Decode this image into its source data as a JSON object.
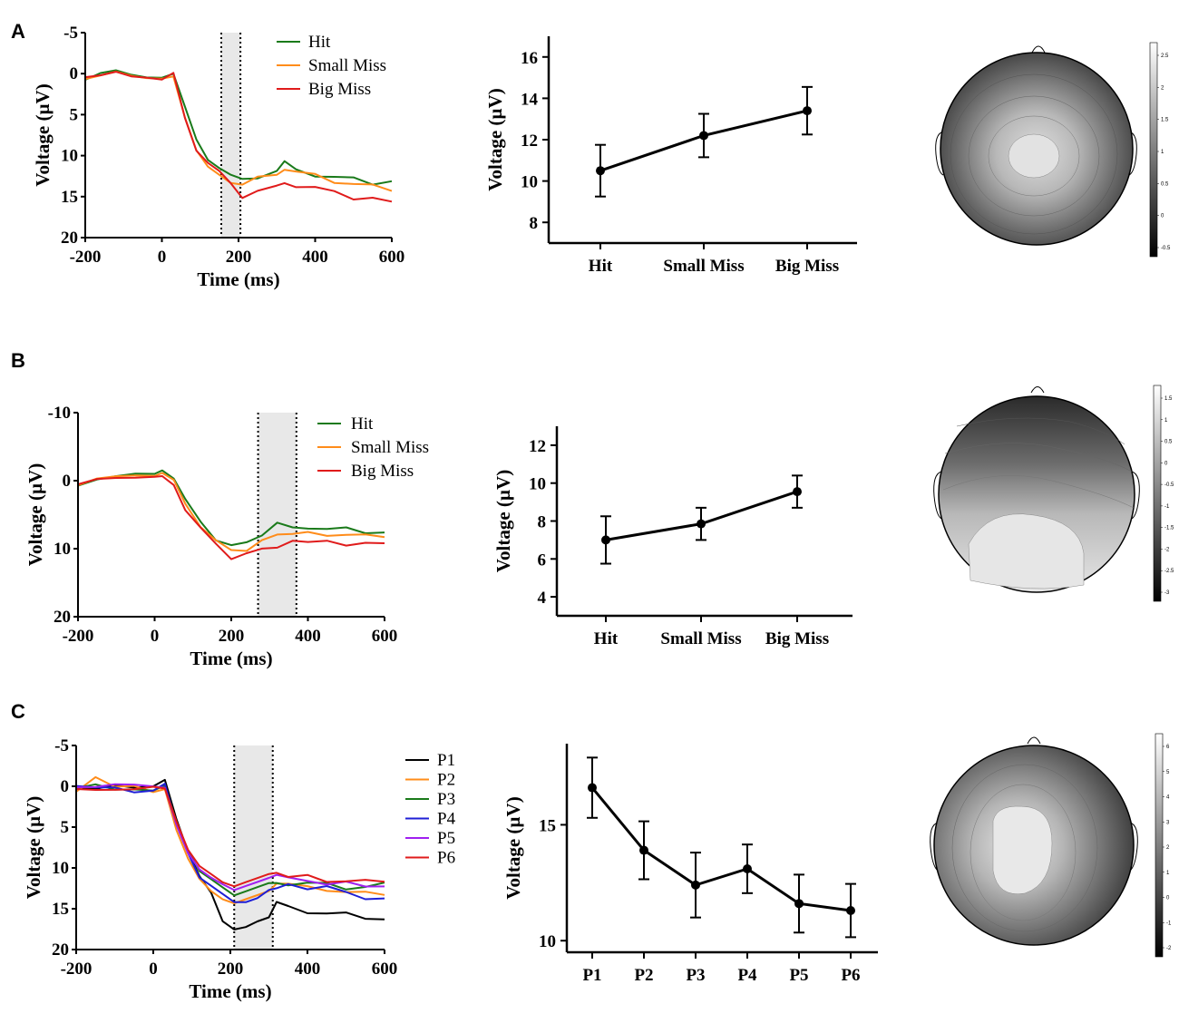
{
  "panels": [
    "A",
    "B",
    "C"
  ],
  "colors": {
    "hit": "#1a7a1a",
    "small_miss": "#ff8c1a",
    "big_miss": "#e01b1b",
    "p1": "#000000",
    "p2": "#ff8c1a",
    "p3": "#1a7a1a",
    "p4": "#1f1fd6",
    "p5": "#a020f0",
    "p6": "#e01b1b",
    "shade": "#e8e8e8"
  },
  "chart_data": [
    {
      "id": "A-erp",
      "type": "line",
      "title": "",
      "xlabel": "Time (ms)",
      "ylabel": "Voltage (µV)",
      "xlim": [
        -200,
        600
      ],
      "ylim": [
        -5,
        20
      ],
      "y_inverted": true,
      "xticks": [
        "-200",
        "0",
        "200",
        "400",
        "600"
      ],
      "yticks": [
        "-5",
        "0",
        "5",
        "10",
        "15",
        "20"
      ],
      "shaded_window_ms": [
        155,
        205
      ],
      "legend": [
        "Hit",
        "Small Miss",
        "Big Miss"
      ],
      "series": [
        {
          "name": "Hit",
          "color": "hit",
          "x": [
            -200,
            -160,
            -120,
            -80,
            -40,
            0,
            30,
            60,
            90,
            120,
            150,
            180,
            210,
            250,
            300,
            320,
            350,
            400,
            450,
            500,
            550,
            600
          ],
          "y": [
            0.5,
            -0.3,
            -0.6,
            0,
            0.4,
            0.5,
            0,
            4,
            8,
            10.5,
            11.5,
            12.3,
            12.8,
            12.5,
            11.8,
            11,
            12,
            12.3,
            12.5,
            13,
            13.3,
            13
          ]
        },
        {
          "name": "Small Miss",
          "color": "small_miss",
          "x": [
            -200,
            -160,
            -120,
            -80,
            -40,
            0,
            30,
            60,
            90,
            120,
            150,
            180,
            210,
            250,
            300,
            320,
            350,
            400,
            450,
            500,
            550,
            600
          ],
          "y": [
            0.5,
            0,
            -0.5,
            0,
            0.3,
            0.4,
            0,
            5,
            9,
            11,
            12,
            13,
            13.2,
            12.8,
            12,
            11.8,
            12,
            12.5,
            13,
            13.5,
            13.8,
            14
          ]
        },
        {
          "name": "Big Miss",
          "color": "big_miss",
          "x": [
            -200,
            -160,
            -120,
            -80,
            -40,
            0,
            30,
            60,
            90,
            120,
            150,
            180,
            210,
            250,
            300,
            320,
            350,
            400,
            450,
            500,
            550,
            600
          ],
          "y": [
            0.5,
            0.2,
            -0.3,
            0.2,
            0.3,
            0.5,
            0,
            5.5,
            9.5,
            11,
            12,
            13.5,
            15.3,
            14.5,
            13.8,
            13,
            13.5,
            14,
            14.5,
            15,
            15.3,
            15.8
          ]
        }
      ]
    },
    {
      "id": "A-mean",
      "type": "line",
      "xlabel": "",
      "ylabel": "Voltage (µV)",
      "categories": [
        "Hit",
        "Small Miss",
        "Big Miss"
      ],
      "values": [
        10.5,
        12.2,
        13.4
      ],
      "errors": [
        1.25,
        1.05,
        1.15
      ],
      "ylim": [
        7,
        17
      ],
      "yticks": [
        "8",
        "10",
        "12",
        "14",
        "16"
      ]
    },
    {
      "id": "B-erp",
      "type": "line",
      "xlabel": "Time (ms)",
      "ylabel": "Voltage (µV)",
      "xlim": [
        -200,
        600
      ],
      "ylim": [
        -10,
        20
      ],
      "y_inverted": true,
      "xticks": [
        "-200",
        "0",
        "200",
        "400",
        "600"
      ],
      "yticks": [
        "-10",
        "0",
        "10",
        "20"
      ],
      "shaded_window_ms": [
        270,
        370
      ],
      "legend": [
        "Hit",
        "Small Miss",
        "Big Miss"
      ],
      "series": [
        {
          "name": "Hit",
          "color": "hit",
          "x": [
            -200,
            -150,
            -100,
            -50,
            0,
            20,
            50,
            80,
            120,
            160,
            200,
            240,
            280,
            320,
            360,
            400,
            450,
            500,
            550,
            600
          ],
          "y": [
            0.5,
            -0.3,
            -0.5,
            -0.8,
            -1,
            -1.2,
            0,
            3,
            6,
            8.5,
            9.8,
            9,
            7.8,
            6.5,
            6.8,
            6.8,
            7,
            7.2,
            7.5,
            7.5
          ]
        },
        {
          "name": "Small Miss",
          "color": "small_miss",
          "x": [
            -200,
            -150,
            -100,
            -50,
            0,
            20,
            50,
            80,
            120,
            160,
            200,
            240,
            280,
            320,
            360,
            400,
            450,
            500,
            550,
            600
          ],
          "y": [
            0.5,
            -0.2,
            -0.4,
            -0.7,
            -0.9,
            -1,
            0,
            3.5,
            6.5,
            9,
            10.3,
            10,
            9,
            8,
            7.5,
            7.8,
            7.8,
            8,
            8.2,
            8
          ]
        },
        {
          "name": "Big Miss",
          "color": "big_miss",
          "x": [
            -200,
            -150,
            -100,
            -50,
            0,
            20,
            50,
            80,
            120,
            160,
            200,
            240,
            280,
            320,
            360,
            400,
            450,
            500,
            550,
            600
          ],
          "y": [
            0.6,
            0,
            -0.3,
            -0.6,
            -0.8,
            -1,
            0.3,
            4,
            7,
            9.5,
            11.2,
            10.8,
            10.2,
            9.5,
            9,
            9.2,
            9,
            9.2,
            9.3,
            9.4
          ]
        }
      ]
    },
    {
      "id": "B-mean",
      "type": "line",
      "ylabel": "Voltage (µV)",
      "categories": [
        "Hit",
        "Small Miss",
        "Big Miss"
      ],
      "values": [
        7.0,
        7.85,
        9.55
      ],
      "errors": [
        1.25,
        0.85,
        0.85
      ],
      "ylim": [
        3,
        13
      ],
      "yticks": [
        "4",
        "6",
        "8",
        "10",
        "12"
      ]
    },
    {
      "id": "C-erp",
      "type": "line",
      "xlabel": "Time (ms)",
      "ylabel": "Voltage (µV)",
      "xlim": [
        -200,
        600
      ],
      "ylim": [
        -5,
        20
      ],
      "y_inverted": true,
      "xticks": [
        "-200",
        "0",
        "200",
        "400",
        "600"
      ],
      "yticks": [
        "-5",
        "0",
        "5",
        "10",
        "15",
        "20"
      ],
      "shaded_window_ms": [
        210,
        310
      ],
      "legend": [
        "P1",
        "P2",
        "P3",
        "P4",
        "P5",
        "P6"
      ],
      "series": [
        {
          "name": "P1",
          "color": "p1",
          "x": [
            -200,
            -150,
            -100,
            -50,
            0,
            30,
            60,
            90,
            120,
            150,
            180,
            210,
            240,
            270,
            300,
            320,
            350,
            400,
            450,
            500,
            550,
            600
          ],
          "y": [
            0,
            0.2,
            0,
            0.4,
            0,
            -0.8,
            4,
            8,
            11,
            13,
            16.5,
            17.5,
            17.2,
            16.5,
            16,
            14.5,
            15,
            15.3,
            15.5,
            15.8,
            16,
            16.2
          ]
        },
        {
          "name": "P2",
          "color": "p2",
          "x": [
            -200,
            -150,
            -100,
            -50,
            0,
            30,
            60,
            90,
            120,
            150,
            180,
            210,
            240,
            270,
            300,
            320,
            350,
            400,
            450,
            500,
            550,
            600
          ],
          "y": [
            0.5,
            -1,
            0.3,
            0,
            0.5,
            0,
            5,
            8.5,
            11,
            12.5,
            13.5,
            14,
            13.5,
            13,
            12.5,
            12,
            12,
            12.5,
            12.5,
            13,
            13.2,
            13
          ]
        },
        {
          "name": "P3",
          "color": "p3",
          "x": [
            -200,
            -150,
            -100,
            -50,
            0,
            30,
            60,
            90,
            120,
            150,
            180,
            210,
            240,
            270,
            300,
            320,
            350,
            400,
            450,
            500,
            550,
            600
          ],
          "y": [
            0.3,
            0,
            0.5,
            0.2,
            0.3,
            0,
            4.5,
            8,
            10.5,
            11.5,
            12.5,
            13.5,
            13,
            12.5,
            12,
            11.5,
            11.8,
            12,
            12,
            12.3,
            12.5,
            12
          ]
        },
        {
          "name": "P4",
          "color": "p4",
          "x": [
            -200,
            -150,
            -100,
            -50,
            0,
            30,
            60,
            90,
            120,
            150,
            180,
            210,
            240,
            270,
            300,
            320,
            350,
            400,
            450,
            500,
            550,
            600
          ],
          "y": [
            0.2,
            0.3,
            0,
            0.5,
            0.5,
            0,
            5,
            8.5,
            11.5,
            12.5,
            13.5,
            14.5,
            14.5,
            14,
            13,
            12.5,
            12,
            12.3,
            12.5,
            13,
            13.5,
            14
          ]
        },
        {
          "name": "P5",
          "color": "p5",
          "x": [
            -200,
            -150,
            -100,
            -50,
            0,
            30,
            60,
            90,
            120,
            150,
            180,
            210,
            240,
            270,
            300,
            320,
            350,
            400,
            450,
            500,
            550,
            600
          ],
          "y": [
            0.3,
            0,
            -0.5,
            -0.3,
            0.2,
            0,
            4.5,
            8,
            10,
            11,
            11.8,
            12.5,
            12,
            11.5,
            11,
            11.2,
            11.5,
            11.5,
            11.8,
            12,
            12.2,
            12
          ]
        },
        {
          "name": "P6",
          "color": "p6",
          "x": [
            -200,
            -150,
            -100,
            -50,
            0,
            30,
            60,
            90,
            120,
            150,
            180,
            210,
            240,
            270,
            300,
            320,
            350,
            400,
            450,
            500,
            550,
            600
          ],
          "y": [
            0.3,
            0.2,
            0.3,
            0.5,
            0.3,
            0,
            4,
            7.5,
            9.5,
            10.5,
            11.5,
            12,
            11.5,
            11,
            10.5,
            10.5,
            11,
            11.2,
            11.5,
            11.5,
            11.8,
            11.5
          ]
        }
      ]
    },
    {
      "id": "C-mean",
      "type": "line",
      "ylabel": "Voltage (µV)",
      "categories": [
        "P1",
        "P2",
        "P3",
        "P4",
        "P5",
        "P6"
      ],
      "values": [
        16.6,
        13.9,
        12.4,
        13.1,
        11.6,
        11.3
      ],
      "errors": [
        1.3,
        1.25,
        1.4,
        1.05,
        1.25,
        1.15
      ],
      "ylim": [
        9.5,
        18.5
      ],
      "yticks": [
        "10",
        "15"
      ]
    }
  ],
  "topomaps": [
    {
      "id": "A-topo",
      "colorbar_ticks": [
        "2.5",
        "2",
        "1.5",
        "1",
        "0.5",
        "0",
        "-0.5"
      ]
    },
    {
      "id": "B-topo",
      "colorbar_ticks": [
        "1.5",
        "1",
        "0.5",
        "0",
        "-0.5",
        "-1",
        "-1.5",
        "-2",
        "-2.5",
        "-3"
      ]
    },
    {
      "id": "C-topo",
      "colorbar_ticks": [
        "6",
        "5",
        "4",
        "3",
        "2",
        "1",
        "0",
        "-1",
        "-2"
      ]
    }
  ]
}
